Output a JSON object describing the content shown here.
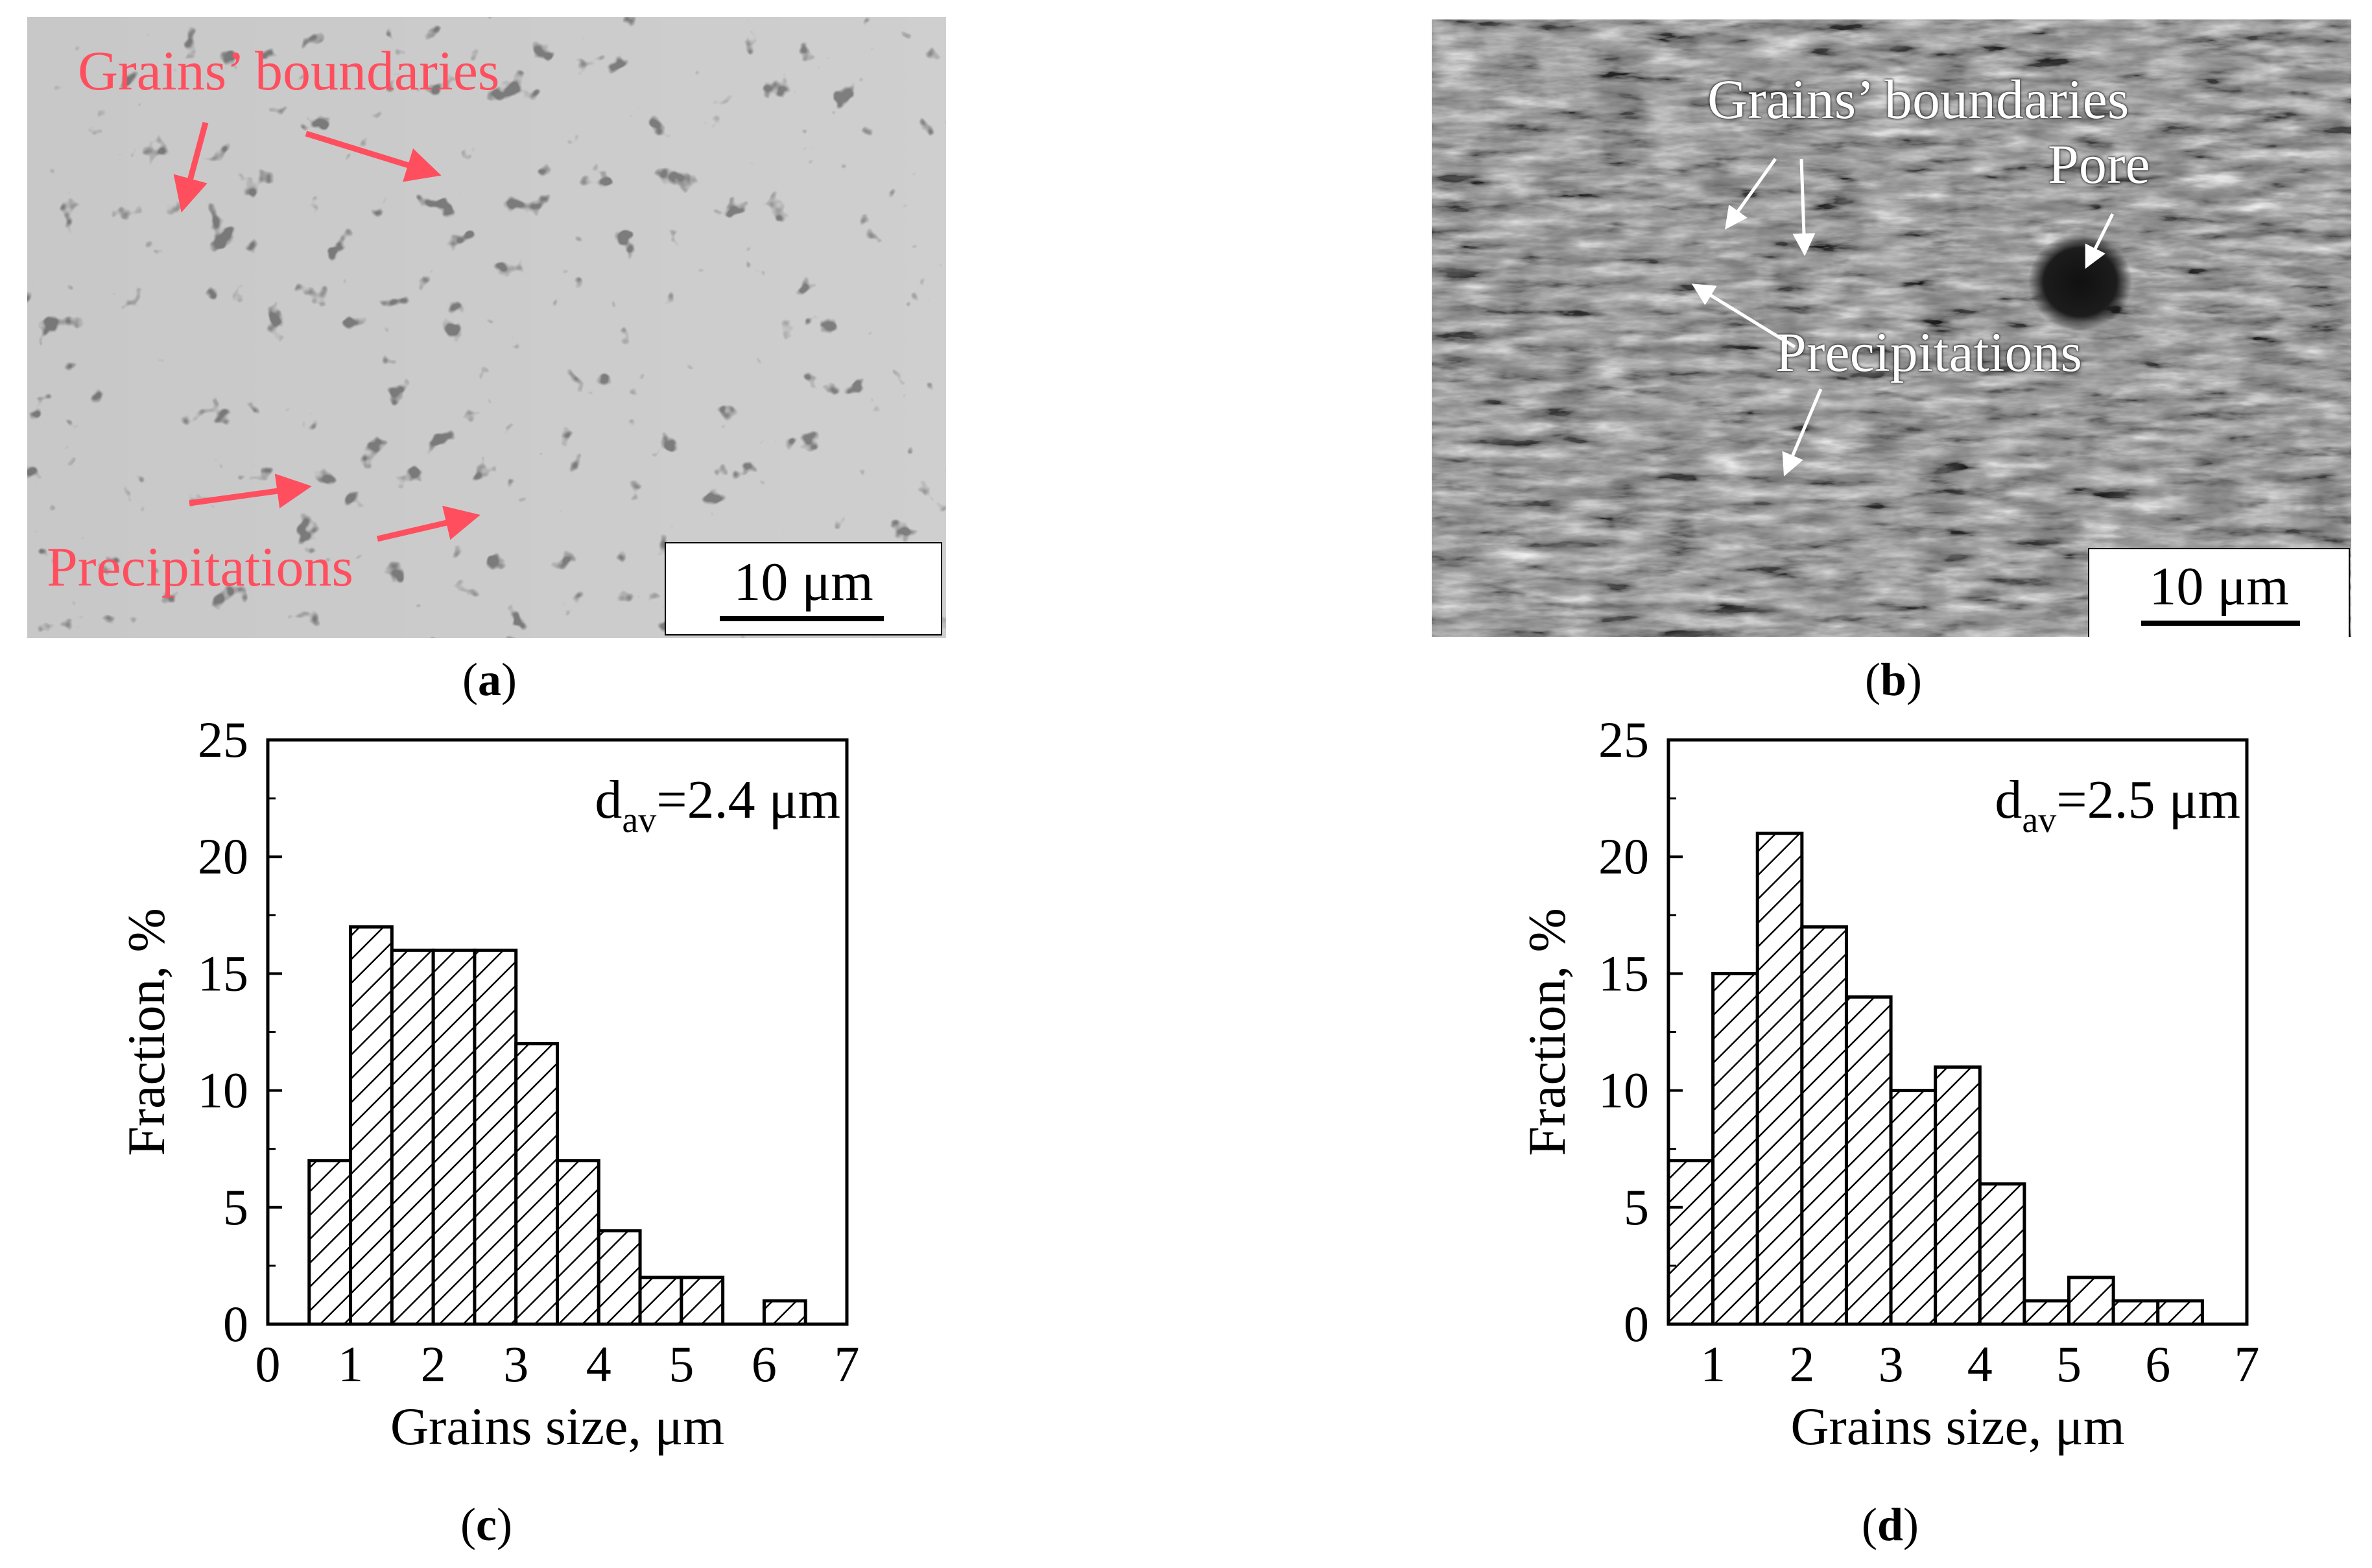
{
  "panels": {
    "a": {
      "caption_open": "(",
      "caption_letter": "a",
      "caption_close": ")",
      "scale_label": "10 μm",
      "labels": {
        "boundaries": "Grains’ boundaries",
        "precipitations": "Precipitations"
      },
      "label_color": "#ff4f5e"
    },
    "b": {
      "caption_open": "(",
      "caption_letter": "b",
      "caption_close": ")",
      "scale_label": "10 μm",
      "labels": {
        "boundaries": "Grains’ boundaries",
        "pore": "Pore",
        "precipitations": "Precipitations"
      },
      "label_color": "#ffffff"
    },
    "c": {
      "caption_open": "(",
      "caption_letter": "c",
      "caption_close": ")"
    },
    "d": {
      "caption_open": "(",
      "caption_letter": "d",
      "caption_close": ")"
    }
  },
  "chart_data": [
    {
      "type": "bar",
      "panel": "c",
      "annotation_main": "d",
      "annotation_sub": "av",
      "annotation_value": "=2.4 μm",
      "xlabel": "Grains size, μm",
      "ylabel": "Fraction, %",
      "xlim": [
        0,
        7
      ],
      "ylim": [
        0,
        25
      ],
      "xticks": [
        0,
        1,
        2,
        3,
        4,
        5,
        6,
        7
      ],
      "yticks": [
        0,
        5,
        10,
        15,
        20,
        25
      ],
      "bin_width": 0.5,
      "x": [
        0.75,
        1.25,
        1.75,
        2.25,
        2.75,
        3.25,
        3.75,
        4.25,
        4.75,
        5.25,
        5.75,
        6.25
      ],
      "values": [
        7,
        17,
        16,
        16,
        16,
        12,
        7,
        4,
        2,
        2,
        0,
        1
      ],
      "fill": "hatched"
    },
    {
      "type": "bar",
      "panel": "d",
      "annotation_main": "d",
      "annotation_sub": "av",
      "annotation_value": "=2.5 μm",
      "xlabel": "Grains size, μm",
      "ylabel": "Fraction, %",
      "xlim": [
        0.5,
        7
      ],
      "ylim": [
        0,
        25
      ],
      "xticks": [
        1,
        2,
        3,
        4,
        5,
        6,
        7
      ],
      "yticks": [
        0,
        5,
        10,
        15,
        20,
        25
      ],
      "bin_width": 0.5,
      "x": [
        0.75,
        1.25,
        1.75,
        2.25,
        2.75,
        3.25,
        3.75,
        4.25,
        4.75,
        5.25,
        5.75,
        6.25
      ],
      "values": [
        7,
        15,
        21,
        17,
        14,
        10,
        11,
        6,
        1,
        2,
        1,
        1
      ],
      "fill": "hatched"
    }
  ]
}
